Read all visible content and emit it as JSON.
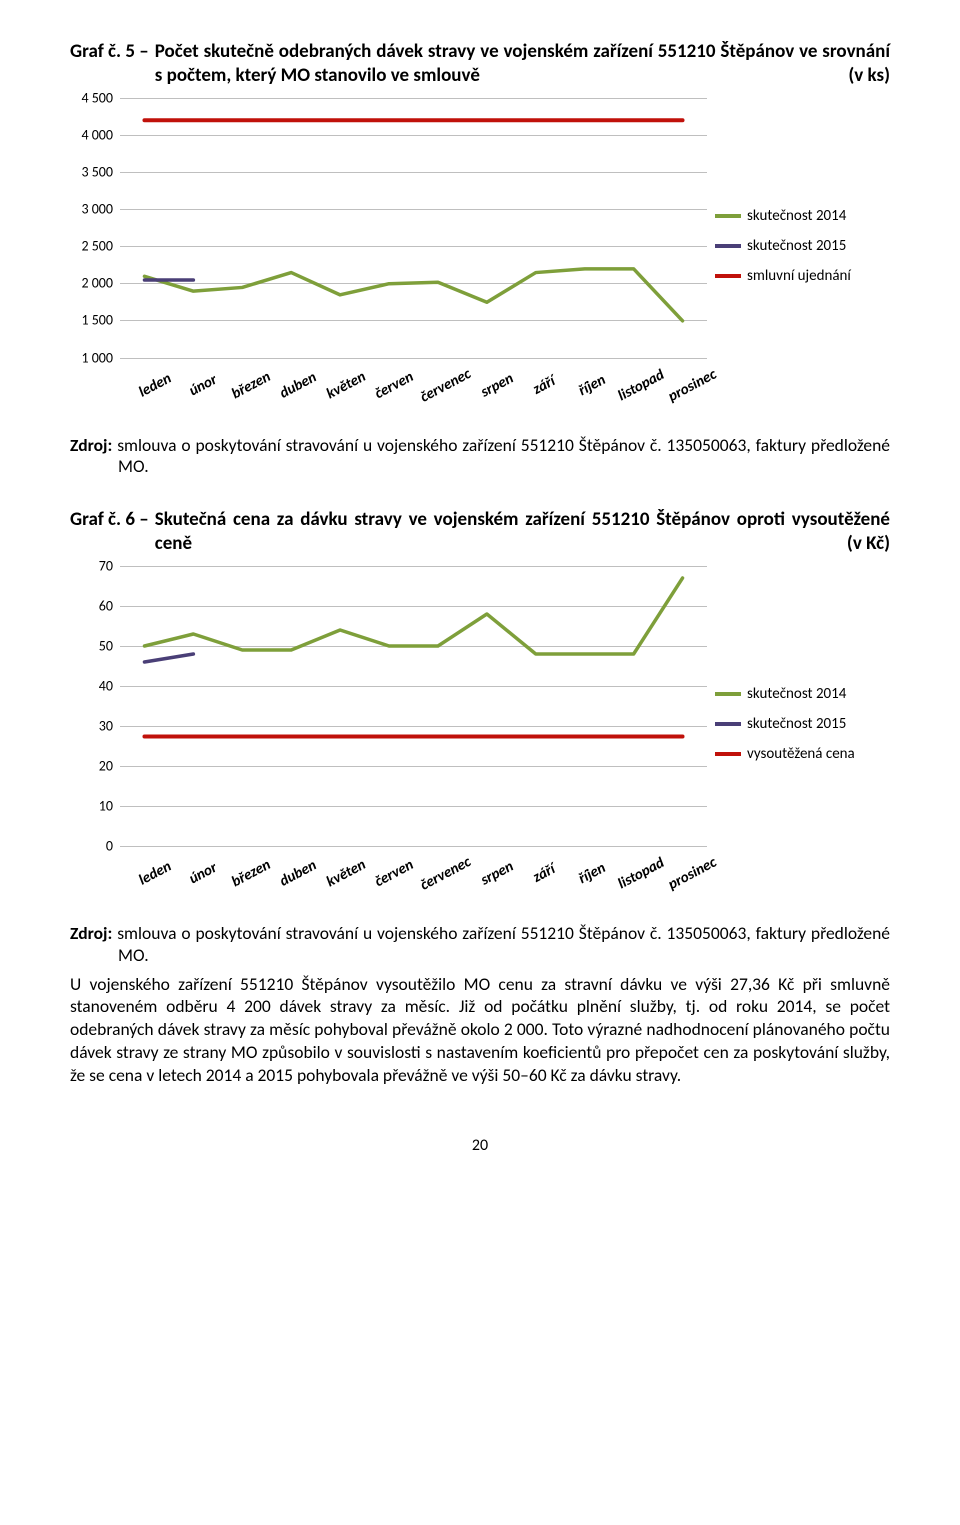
{
  "months": [
    "leden",
    "únor",
    "březen",
    "duben",
    "květen",
    "červen",
    "červenec",
    "srpen",
    "září",
    "říjen",
    "listopad",
    "prosinec"
  ],
  "chart5": {
    "title_label": "Graf č. 5 – ",
    "title_text": "Počet skutečně odebraných dávek stravy ve vojenském zařízení 551210 Štěpánov ve srovnání s počtem, který MO stanovilo ve smlouvě",
    "title_unit": "(v ks)",
    "type": "line",
    "ylim": [
      1000,
      4500
    ],
    "ytick_step": 500,
    "yticks": [
      "1 000",
      "1 500",
      "2 000",
      "2 500",
      "3 000",
      "3 500",
      "4 000",
      "4 500"
    ],
    "series": {
      "sk2014": {
        "color": "#7e9f3a",
        "width": 3.5,
        "values": [
          2100,
          1900,
          1950,
          2150,
          1850,
          2000,
          2020,
          1750,
          2150,
          2200,
          2200,
          1500
        ]
      },
      "sk2015": {
        "color": "#4a3f77",
        "width": 3.5,
        "values": [
          2050,
          2050,
          null,
          null,
          null,
          null,
          null,
          null,
          null,
          null,
          null,
          null
        ]
      },
      "smlouva": {
        "color": "#c0110a",
        "width": 4,
        "values": [
          4200,
          4200,
          4200,
          4200,
          4200,
          4200,
          4200,
          4200,
          4200,
          4200,
          4200,
          4200
        ]
      }
    },
    "legend": [
      {
        "label": "skutečnost 2014",
        "color": "#7e9f3a"
      },
      {
        "label": "skutečnost 2015",
        "color": "#4a3f77"
      },
      {
        "label": "smluvní ujednání",
        "color": "#c0110a"
      }
    ],
    "grid_color": "#bfbfbf",
    "background": "#ffffff"
  },
  "source5_label": "Zdroj:",
  "source5_text": " smlouva o poskytování stravování u vojenského zařízení 551210 Štěpánov č. 135050063, faktury předložené MO.",
  "chart6": {
    "title_label": "Graf č. 6 – ",
    "title_text": "Skutečná cena za dávku stravy ve vojenském zařízení 551210 Štěpánov oproti vysoutěžené ceně",
    "title_unit": "(v Kč)",
    "type": "line",
    "ylim": [
      0,
      70
    ],
    "ytick_step": 10,
    "yticks": [
      "0",
      "10",
      "20",
      "30",
      "40",
      "50",
      "60",
      "70"
    ],
    "series": {
      "sk2014": {
        "color": "#7e9f3a",
        "width": 3.5,
        "values": [
          50,
          53,
          49,
          49,
          54,
          50,
          50,
          58,
          48,
          48,
          48,
          67
        ]
      },
      "sk2015": {
        "color": "#4a3f77",
        "width": 3.5,
        "values": [
          46,
          48,
          null,
          null,
          null,
          null,
          null,
          null,
          null,
          null,
          null,
          null
        ]
      },
      "vysout": {
        "color": "#c0110a",
        "width": 4,
        "values": [
          27.36,
          27.36,
          27.36,
          27.36,
          27.36,
          27.36,
          27.36,
          27.36,
          27.36,
          27.36,
          27.36,
          27.36
        ]
      }
    },
    "legend": [
      {
        "label": "skutečnost 2014",
        "color": "#7e9f3a"
      },
      {
        "label": "skutečnost 2015",
        "color": "#4a3f77"
      },
      {
        "label": "vysoutěžená cena",
        "color": "#c0110a"
      }
    ],
    "grid_color": "#bfbfbf",
    "background": "#ffffff"
  },
  "source6_label": "Zdroj:",
  "source6_text": " smlouva o poskytování stravování u vojenského zařízení 551210 Štěpánov č. 135050063, faktury předložené MO.",
  "body_paragraph": "U vojenského zařízení 551210 Štěpánov vysoutěžilo MO cenu za stravní dávku ve výši 27,36 Kč při smluvně stanoveném odběru 4 200 dávek stravy za měsíc. Již od počátku plnění služby, tj. od roku 2014, se počet odebraných dávek stravy za měsíc pohyboval převážně okolo 2 000. Toto výrazné nadhodnocení plánovaného počtu dávek stravy ze strany MO způsobilo v souvislosti s nastavením koeficientů pro přepočet cen za poskytování služby, že se cena v letech 2014 a 2015 pohybovala převážně ve výši 50–60 Kč za dávku stravy.",
  "page_number": "20"
}
